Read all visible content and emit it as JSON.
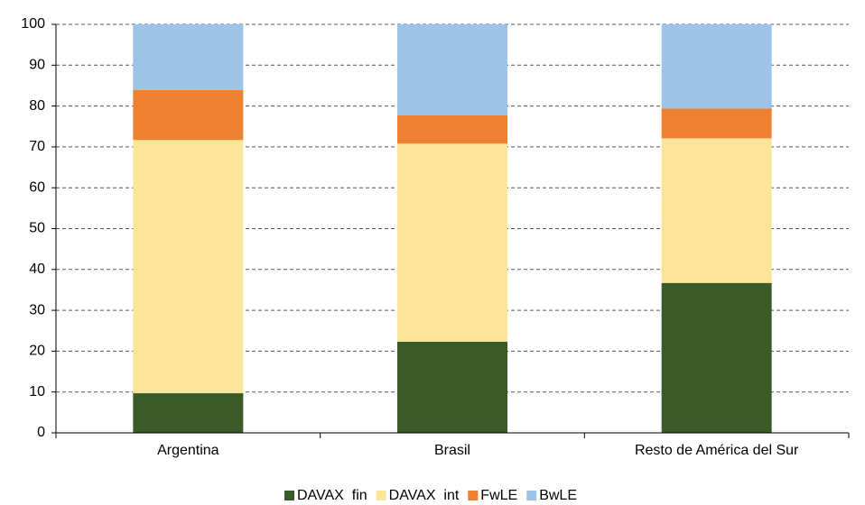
{
  "chart_data": {
    "type": "stacked_bar",
    "categories": [
      "Argentina",
      "Brasil",
      "Resto de América del Sur"
    ],
    "series": [
      {
        "name": "DAVAX  fin",
        "color": "#3a5a27",
        "values": [
          9.7,
          22.3,
          36.7
        ]
      },
      {
        "name": "DAVAX  int",
        "color": "#fae59a",
        "values": [
          62,
          48.5,
          35.4
        ]
      },
      {
        "name": "FwLE",
        "color": "#ee8032",
        "values": [
          12.2,
          6.9,
          7.3
        ]
      },
      {
        "name": "BwLE",
        "color": "#9dc3e6",
        "values": [
          16.1,
          22.3,
          20.6
        ]
      }
    ],
    "ylim": [
      0,
      100
    ],
    "yticks": [
      0,
      10,
      20,
      30,
      40,
      50,
      60,
      70,
      80,
      90,
      100
    ],
    "grid": true,
    "legend": "bottom"
  }
}
